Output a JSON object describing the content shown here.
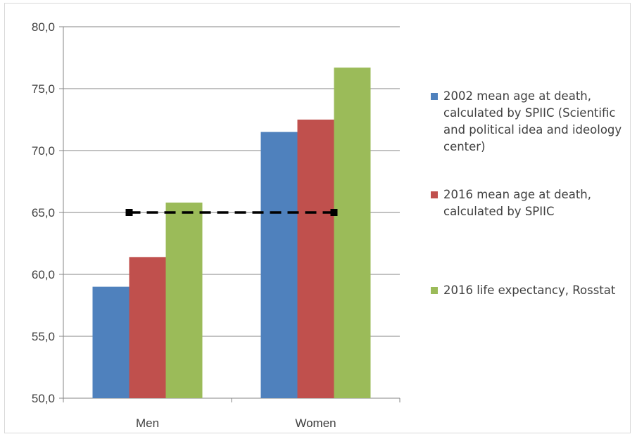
{
  "chart_data": {
    "type": "bar",
    "categories": [
      "Men",
      "Women"
    ],
    "series": [
      {
        "name": "2002 mean age at death, calculated by SPIIC (Scientific and political idea and ideology center)",
        "values": [
          59.0,
          71.5
        ],
        "color": "#4f81bd"
      },
      {
        "name": "2016 mean age at death, calculated by SPIIC",
        "values": [
          61.4,
          72.5
        ],
        "color": "#c0504d"
      },
      {
        "name": "2016 life expectancy, Rosstat",
        "values": [
          65.8,
          76.7
        ],
        "color": "#9bbb59"
      }
    ],
    "reference_line": {
      "value": 65.0,
      "style": "dashed",
      "color": "#000000"
    },
    "ylim": [
      50,
      80
    ],
    "yticks": [
      "50,0",
      "55,0",
      "60,0",
      "65,0",
      "70,0",
      "75,0",
      "80,0"
    ],
    "grid": true,
    "legend_position": "right"
  }
}
